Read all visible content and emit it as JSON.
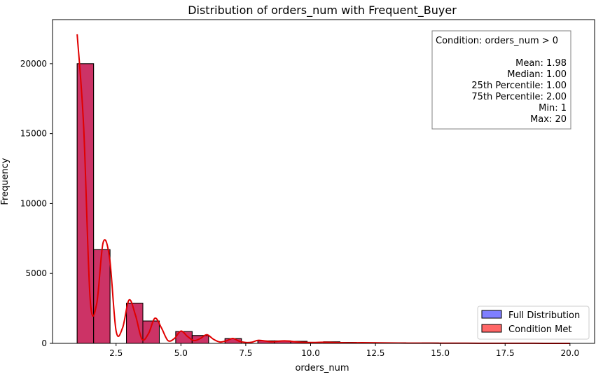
{
  "chart_data": {
    "type": "bar",
    "title": "Distribution of orders_num with Frequent_Buyer",
    "xlabel": "orders_num",
    "ylabel": "Frequency",
    "xlim": [
      0.05,
      20.95
    ],
    "ylim": [
      0,
      23150
    ],
    "xticks": [
      2.5,
      5.0,
      7.5,
      10.0,
      12.5,
      15.0,
      17.5,
      20.0
    ],
    "xtick_labels": [
      "2.5",
      "5.0",
      "7.5",
      "10.0",
      "12.5",
      "15.0",
      "17.5",
      "20.0"
    ],
    "yticks": [
      0,
      5000,
      10000,
      15000,
      20000
    ],
    "ytick_labels": [
      "0",
      "5000",
      "10000",
      "15000",
      "20000"
    ],
    "bin_edges": [
      1.0,
      1.633,
      2.267,
      2.9,
      3.533,
      4.167,
      4.8,
      5.433,
      6.067,
      6.7,
      7.333,
      7.967,
      8.6,
      9.233,
      9.867,
      10.5,
      11.133,
      11.767,
      12.4,
      13.033,
      13.667,
      14.3,
      14.933,
      15.567,
      16.2,
      16.833,
      17.467,
      18.1,
      18.733,
      19.367,
      20.0
    ],
    "series": [
      {
        "name": "Full Distribution",
        "color": "#0000ff",
        "counts": [
          20000,
          6700,
          0,
          2870,
          1600,
          0,
          850,
          560,
          0,
          340,
          0,
          180,
          180,
          150,
          0,
          110,
          70,
          0,
          50,
          40,
          0,
          30,
          25,
          0,
          20,
          15,
          0,
          12,
          8,
          5
        ]
      },
      {
        "name": "Condition Met",
        "color": "#ff0000",
        "counts": [
          20000,
          6700,
          0,
          2870,
          1600,
          0,
          850,
          560,
          0,
          340,
          0,
          180,
          180,
          150,
          0,
          110,
          70,
          0,
          50,
          40,
          0,
          30,
          25,
          0,
          20,
          15,
          0,
          12,
          8,
          5
        ]
      }
    ],
    "kde": {
      "x": [
        1.0,
        1.25,
        1.5,
        1.75,
        2.0,
        2.25,
        2.5,
        2.75,
        3.0,
        3.25,
        3.5,
        3.75,
        4.0,
        4.25,
        4.5,
        4.75,
        5.0,
        5.25,
        5.5,
        5.75,
        6.0,
        6.25,
        6.5,
        6.75,
        7.0,
        7.25,
        7.5,
        7.75,
        8.0,
        8.5,
        9.0,
        9.5,
        10.0,
        10.5,
        11.0,
        11.5,
        12.0,
        13.0,
        14.0,
        15.0,
        16.0,
        17.0,
        18.0,
        19.0,
        20.0
      ],
      "y": [
        22100,
        15500,
        3200,
        2800,
        7200,
        6100,
        900,
        1100,
        3100,
        2000,
        300,
        700,
        1800,
        1100,
        200,
        350,
        880,
        500,
        200,
        350,
        620,
        300,
        100,
        180,
        350,
        150,
        60,
        90,
        220,
        120,
        180,
        100,
        60,
        80,
        60,
        40,
        50,
        30,
        20,
        15,
        10,
        8,
        5,
        3,
        0
      ]
    },
    "legend": {
      "placement": "lower right",
      "entries": [
        "Full Distribution",
        "Condition Met"
      ]
    },
    "annotation": {
      "placement": "top-right",
      "lines": [
        "Condition: orders_num > 0",
        "",
        "Mean: 1.98",
        "Median: 1.00",
        "25th Percentile: 1.00",
        "75th Percentile: 2.00",
        "Min: 1",
        "Max: 20"
      ]
    },
    "colors": {
      "bar_overlap": "#cc3366",
      "kde": "#e00000"
    },
    "grid": false
  }
}
